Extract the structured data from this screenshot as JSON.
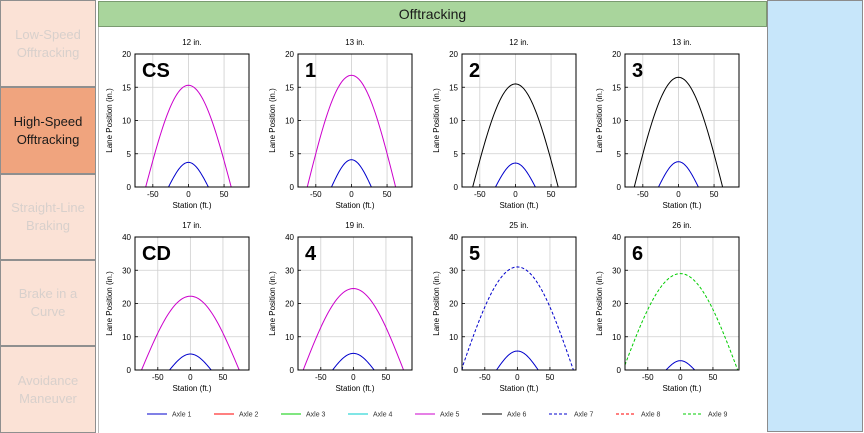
{
  "header": {
    "title": "Offtracking"
  },
  "sidebar": {
    "items": [
      {
        "label": "Low-Speed\nOfftracking",
        "active": false
      },
      {
        "label": "High-Speed\nOfftracking",
        "active": true
      },
      {
        "label": "Straight-Line\nBraking",
        "active": false
      },
      {
        "label": "Brake in a\nCurve",
        "active": false
      },
      {
        "label": "Avoidance\nManeuver",
        "active": false
      }
    ]
  },
  "axes": {
    "xlabel": "Station (ft.)",
    "ylabel": "Lane Position (in.)"
  },
  "colors": {
    "axle1": "#0000cc",
    "axle2": "#ff0000",
    "axle3": "#00cc00",
    "axle4": "#00cccc",
    "axle5": "#cc00cc",
    "axle6": "#000000",
    "axle7": "#0000cc",
    "axle8": "#ff0000",
    "axle9": "#00cc00"
  },
  "legend": [
    {
      "label": "Axle 1",
      "color": "#0000cc",
      "dash": false
    },
    {
      "label": "Axle 2",
      "color": "#ff0000",
      "dash": false
    },
    {
      "label": "Axle 3",
      "color": "#00cc00",
      "dash": false
    },
    {
      "label": "Axle 4",
      "color": "#00cccc",
      "dash": false
    },
    {
      "label": "Axle 5",
      "color": "#cc00cc",
      "dash": false
    },
    {
      "label": "Axle 6",
      "color": "#000000",
      "dash": false
    },
    {
      "label": "Axle 7",
      "color": "#0000cc",
      "dash": true
    },
    {
      "label": "Axle 8",
      "color": "#ff0000",
      "dash": true
    },
    {
      "label": "Axle 9",
      "color": "#00cc00",
      "dash": true
    }
  ],
  "chart_data": [
    {
      "type": "line",
      "title": "12 in.",
      "label": "CS",
      "xlim": [
        -75,
        85
      ],
      "ylim": [
        0,
        20
      ],
      "xticks": [
        -50,
        0,
        50
      ],
      "yticks": [
        0,
        5,
        10,
        15,
        20
      ],
      "series": [
        {
          "name": "Axle 1",
          "peak": 3.7,
          "halfwidth": 28,
          "color": "#0000cc",
          "dash": false
        },
        {
          "name": "Axle 5",
          "peak": 15.3,
          "halfwidth": 60,
          "color": "#cc00cc",
          "dash": false
        }
      ]
    },
    {
      "type": "line",
      "title": "13 in.",
      "label": "1",
      "xlim": [
        -75,
        85
      ],
      "ylim": [
        0,
        20
      ],
      "xticks": [
        -50,
        0,
        50
      ],
      "yticks": [
        0,
        5,
        10,
        15,
        20
      ],
      "series": [
        {
          "name": "Axle 1",
          "peak": 4.1,
          "halfwidth": 28,
          "color": "#0000cc",
          "dash": false
        },
        {
          "name": "Axle 5",
          "peak": 16.8,
          "halfwidth": 62,
          "color": "#cc00cc",
          "dash": false
        }
      ]
    },
    {
      "type": "line",
      "title": "12 in.",
      "label": "2",
      "xlim": [
        -75,
        85
      ],
      "ylim": [
        0,
        20
      ],
      "xticks": [
        -50,
        0,
        50
      ],
      "yticks": [
        0,
        5,
        10,
        15,
        20
      ],
      "series": [
        {
          "name": "Axle 1",
          "peak": 3.6,
          "halfwidth": 28,
          "color": "#0000cc",
          "dash": false
        },
        {
          "name": "Axle 6",
          "peak": 15.5,
          "halfwidth": 60,
          "color": "#000000",
          "dash": false
        }
      ]
    },
    {
      "type": "line",
      "title": "13 in.",
      "label": "3",
      "xlim": [
        -75,
        85
      ],
      "ylim": [
        0,
        20
      ],
      "xticks": [
        -50,
        0,
        50
      ],
      "yticks": [
        0,
        5,
        10,
        15,
        20
      ],
      "series": [
        {
          "name": "Axle 1",
          "peak": 3.8,
          "halfwidth": 28,
          "color": "#0000cc",
          "dash": false
        },
        {
          "name": "Axle 6",
          "peak": 16.5,
          "halfwidth": 62,
          "color": "#000000",
          "dash": false
        }
      ]
    },
    {
      "type": "line",
      "title": "17 in.",
      "label": "CD",
      "xlim": [
        -85,
        90
      ],
      "ylim": [
        0,
        40
      ],
      "xticks": [
        -50,
        0,
        50
      ],
      "yticks": [
        0,
        10,
        20,
        30,
        40
      ],
      "series": [
        {
          "name": "Axle 1",
          "peak": 4.8,
          "halfwidth": 32,
          "color": "#0000cc",
          "dash": false
        },
        {
          "name": "Axle 5",
          "peak": 22.2,
          "halfwidth": 75,
          "color": "#cc00cc",
          "dash": false
        }
      ]
    },
    {
      "type": "line",
      "title": "19 in.",
      "label": "4",
      "xlim": [
        -85,
        90
      ],
      "ylim": [
        0,
        40
      ],
      "xticks": [
        -50,
        0,
        50
      ],
      "yticks": [
        0,
        10,
        20,
        30,
        40
      ],
      "series": [
        {
          "name": "Axle 1",
          "peak": 5.0,
          "halfwidth": 32,
          "color": "#0000cc",
          "dash": false
        },
        {
          "name": "Axle 5",
          "peak": 24.5,
          "halfwidth": 77,
          "color": "#cc00cc",
          "dash": false
        }
      ]
    },
    {
      "type": "line",
      "title": "25 in.",
      "label": "5",
      "xlim": [
        -85,
        90
      ],
      "ylim": [
        0,
        40
      ],
      "xticks": [
        -50,
        0,
        50
      ],
      "yticks": [
        0,
        10,
        20,
        30,
        40
      ],
      "series": [
        {
          "name": "Axle 1",
          "peak": 5.7,
          "halfwidth": 32,
          "color": "#0000cc",
          "dash": false
        },
        {
          "name": "Axle 7",
          "peak": 31.0,
          "halfwidth": 86,
          "color": "#0000cc",
          "dash": true
        }
      ]
    },
    {
      "type": "line",
      "title": "26 in.",
      "label": "6",
      "xlim": [
        -85,
        90
      ],
      "ylim": [
        0,
        40
      ],
      "xticks": [
        -50,
        0,
        50
      ],
      "yticks": [
        0,
        10,
        20,
        30,
        40
      ],
      "series": [
        {
          "name": "Axle 1",
          "peak": 2.8,
          "halfwidth": 22,
          "color": "#0000cc",
          "dash": false
        },
        {
          "name": "Axle 9",
          "peak": 29.0,
          "halfwidth": 88,
          "color": "#00cc00",
          "dash": true
        }
      ]
    }
  ]
}
